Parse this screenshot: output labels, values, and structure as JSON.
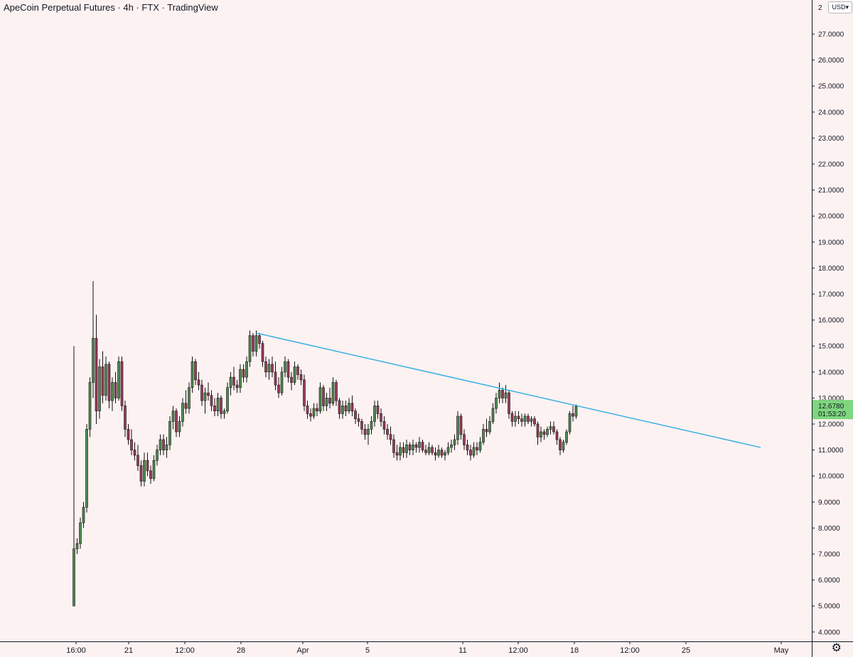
{
  "header": {
    "title": "ApeCoin Perpetual Futures · 4h · FTX · TradingView",
    "currency_label": "USD",
    "currency_chevron": "▾"
  },
  "price_tag": {
    "price": "12.6780",
    "countdown": "01:53:20",
    "color": "#7ed67e"
  },
  "settings_icon": "gear-icon",
  "colors": {
    "background": "#fdf2f2",
    "up_candle": "#4f8a50",
    "down_candle": "#9b3b5a",
    "trendline": "#3ab0e2",
    "axis": "#131722"
  },
  "chart_data": {
    "type": "candlestick",
    "title": "ApeCoin Perpetual Futures · 4h · FTX · TradingView",
    "y_axis": {
      "side": "right",
      "ylim": [
        3.8,
        28.2
      ],
      "ticks": [
        "4.0000",
        "5.0000",
        "6.0000",
        "7.0000",
        "8.0000",
        "9.0000",
        "10.0000",
        "11.0000",
        "12.0000",
        "13.0000",
        "14.0000",
        "15.0000",
        "16.0000",
        "17.0000",
        "18.0000",
        "19.0000",
        "20.0000",
        "21.0000",
        "22.0000",
        "23.0000",
        "24.0000",
        "25.0000",
        "26.0000",
        "27.0000"
      ],
      "top_tick_clipped": "2"
    },
    "x_axis": {
      "ticks": [
        "16:00",
        "21",
        "12:00",
        "28",
        "Apr",
        "5",
        "11",
        "12:00",
        "18",
        "12:00",
        "25",
        "May"
      ]
    },
    "candles": [
      [
        5.0,
        15.0,
        5.0,
        7.2
      ],
      [
        7.2,
        7.6,
        7.0,
        7.4
      ],
      [
        7.4,
        8.4,
        7.2,
        8.2
      ],
      [
        8.2,
        9.0,
        8.0,
        8.8
      ],
      [
        8.8,
        12.0,
        8.6,
        11.8
      ],
      [
        11.8,
        13.8,
        11.5,
        13.6
      ],
      [
        13.6,
        17.5,
        13.0,
        15.3
      ],
      [
        15.3,
        16.2,
        12.0,
        12.5
      ],
      [
        12.5,
        14.5,
        12.2,
        14.2
      ],
      [
        14.2,
        14.8,
        12.8,
        13.1
      ],
      [
        13.1,
        14.6,
        12.9,
        14.3
      ],
      [
        14.3,
        14.4,
        12.6,
        12.9
      ],
      [
        12.9,
        13.8,
        12.5,
        13.6
      ],
      [
        13.6,
        14.0,
        12.8,
        13.0
      ],
      [
        13.0,
        14.6,
        12.9,
        14.4
      ],
      [
        14.4,
        14.6,
        12.5,
        12.7
      ],
      [
        12.7,
        12.9,
        11.5,
        11.8
      ],
      [
        11.8,
        12.0,
        11.2,
        11.4
      ],
      [
        11.4,
        11.8,
        10.8,
        11.0
      ],
      [
        11.0,
        11.3,
        10.6,
        10.8
      ],
      [
        10.8,
        11.2,
        10.2,
        10.4
      ],
      [
        10.4,
        10.6,
        9.6,
        9.8
      ],
      [
        9.8,
        10.9,
        9.6,
        10.6
      ],
      [
        10.6,
        10.9,
        10.0,
        10.2
      ],
      [
        10.2,
        10.4,
        9.7,
        9.9
      ],
      [
        9.9,
        10.8,
        9.8,
        10.6
      ],
      [
        10.6,
        11.2,
        10.4,
        11.0
      ],
      [
        11.0,
        11.6,
        10.8,
        11.4
      ],
      [
        11.4,
        11.6,
        10.8,
        11.0
      ],
      [
        11.0,
        11.5,
        10.7,
        11.2
      ],
      [
        11.2,
        12.3,
        11.0,
        12.1
      ],
      [
        12.1,
        12.7,
        11.8,
        12.5
      ],
      [
        12.5,
        12.6,
        11.5,
        11.7
      ],
      [
        11.7,
        12.3,
        11.5,
        12.1
      ],
      [
        12.1,
        13.0,
        11.9,
        12.8
      ],
      [
        12.8,
        13.3,
        12.4,
        12.6
      ],
      [
        12.6,
        13.6,
        12.4,
        13.4
      ],
      [
        13.4,
        14.6,
        13.2,
        14.4
      ],
      [
        14.4,
        14.5,
        13.5,
        13.7
      ],
      [
        13.7,
        14.0,
        13.3,
        13.5
      ],
      [
        13.5,
        13.7,
        12.7,
        12.9
      ],
      [
        12.9,
        13.4,
        12.4,
        13.2
      ],
      [
        13.2,
        13.6,
        12.9,
        13.1
      ],
      [
        13.1,
        13.3,
        12.5,
        12.7
      ],
      [
        12.7,
        13.0,
        12.3,
        12.5
      ],
      [
        12.5,
        13.2,
        12.3,
        13.0
      ],
      [
        13.0,
        13.1,
        12.2,
        12.4
      ],
      [
        12.4,
        12.6,
        12.2,
        12.5
      ],
      [
        12.5,
        13.6,
        12.4,
        13.4
      ],
      [
        13.4,
        14.0,
        13.1,
        13.8
      ],
      [
        13.8,
        14.2,
        13.3,
        13.5
      ],
      [
        13.5,
        13.7,
        13.2,
        13.4
      ],
      [
        13.4,
        14.3,
        13.2,
        14.1
      ],
      [
        14.1,
        14.3,
        13.6,
        13.8
      ],
      [
        13.8,
        14.6,
        13.6,
        14.4
      ],
      [
        14.4,
        15.6,
        14.2,
        15.4
      ],
      [
        15.4,
        15.5,
        14.6,
        14.8
      ],
      [
        14.8,
        15.6,
        14.6,
        15.4
      ],
      [
        15.4,
        15.5,
        14.9,
        15.1
      ],
      [
        15.1,
        15.2,
        14.2,
        14.4
      ],
      [
        14.4,
        14.6,
        13.8,
        14.0
      ],
      [
        14.0,
        14.5,
        13.7,
        14.3
      ],
      [
        14.3,
        14.6,
        13.8,
        14.0
      ],
      [
        14.0,
        14.4,
        13.3,
        13.5
      ],
      [
        13.5,
        13.8,
        13.0,
        13.2
      ],
      [
        13.2,
        14.2,
        13.1,
        14.0
      ],
      [
        14.0,
        14.6,
        13.8,
        14.4
      ],
      [
        14.4,
        14.5,
        13.6,
        13.8
      ],
      [
        13.8,
        14.0,
        13.3,
        13.6
      ],
      [
        13.6,
        14.4,
        13.5,
        14.2
      ],
      [
        14.2,
        14.3,
        13.7,
        13.9
      ],
      [
        13.9,
        14.1,
        13.5,
        13.7
      ],
      [
        13.7,
        13.9,
        12.5,
        12.7
      ],
      [
        12.7,
        12.9,
        12.2,
        12.4
      ],
      [
        12.4,
        12.6,
        12.1,
        12.3
      ],
      [
        12.3,
        12.8,
        12.2,
        12.6
      ],
      [
        12.6,
        12.8,
        12.3,
        12.5
      ],
      [
        12.5,
        13.6,
        12.4,
        13.4
      ],
      [
        13.4,
        13.5,
        12.5,
        12.7
      ],
      [
        12.7,
        13.2,
        12.5,
        13.0
      ],
      [
        13.0,
        13.4,
        12.6,
        12.8
      ],
      [
        12.8,
        13.8,
        12.7,
        13.6
      ],
      [
        13.6,
        13.7,
        12.7,
        12.9
      ],
      [
        12.9,
        13.0,
        12.2,
        12.4
      ],
      [
        12.4,
        12.9,
        12.2,
        12.7
      ],
      [
        12.7,
        12.9,
        12.3,
        12.5
      ],
      [
        12.5,
        13.0,
        12.4,
        12.8
      ],
      [
        12.8,
        13.1,
        12.3,
        12.5
      ],
      [
        12.5,
        12.6,
        12.0,
        12.2
      ],
      [
        12.2,
        12.4,
        11.9,
        12.1
      ],
      [
        12.1,
        12.2,
        11.6,
        11.8
      ],
      [
        11.8,
        12.0,
        11.4,
        11.6
      ],
      [
        11.6,
        12.0,
        11.2,
        11.8
      ],
      [
        11.8,
        12.3,
        11.6,
        12.1
      ],
      [
        12.1,
        12.9,
        11.9,
        12.7
      ],
      [
        12.7,
        12.9,
        12.2,
        12.4
      ],
      [
        12.4,
        12.6,
        11.9,
        12.1
      ],
      [
        12.1,
        12.3,
        11.6,
        11.8
      ],
      [
        11.8,
        12.0,
        11.4,
        11.6
      ],
      [
        11.6,
        11.9,
        11.2,
        11.4
      ],
      [
        11.4,
        11.6,
        10.7,
        10.9
      ],
      [
        10.9,
        11.2,
        10.6,
        10.8
      ],
      [
        10.8,
        11.3,
        10.6,
        11.1
      ],
      [
        11.1,
        11.3,
        10.7,
        10.9
      ],
      [
        10.9,
        11.4,
        10.7,
        11.2
      ],
      [
        11.2,
        11.3,
        10.8,
        11.0
      ],
      [
        11.0,
        11.4,
        10.8,
        11.2
      ],
      [
        11.2,
        11.3,
        10.9,
        11.1
      ],
      [
        11.1,
        11.5,
        10.9,
        11.3
      ],
      [
        11.3,
        11.4,
        10.9,
        11.0
      ],
      [
        11.0,
        11.2,
        10.8,
        10.9
      ],
      [
        10.9,
        11.3,
        10.8,
        11.1
      ],
      [
        11.1,
        11.2,
        10.8,
        10.9
      ],
      [
        10.9,
        11.1,
        10.6,
        10.8
      ],
      [
        10.8,
        11.2,
        10.7,
        11.0
      ],
      [
        11.0,
        11.1,
        10.7,
        10.8
      ],
      [
        10.8,
        11.0,
        10.6,
        10.9
      ],
      [
        10.9,
        11.3,
        10.8,
        11.1
      ],
      [
        11.1,
        11.4,
        10.9,
        11.2
      ],
      [
        11.2,
        11.6,
        11.0,
        11.4
      ],
      [
        11.4,
        12.5,
        11.2,
        12.3
      ],
      [
        12.3,
        12.4,
        11.4,
        11.6
      ],
      [
        11.6,
        11.8,
        11.0,
        11.2
      ],
      [
        11.2,
        11.4,
        10.8,
        11.0
      ],
      [
        11.0,
        11.2,
        10.6,
        10.8
      ],
      [
        10.8,
        11.3,
        10.7,
        11.1
      ],
      [
        11.1,
        11.3,
        10.8,
        11.0
      ],
      [
        11.0,
        11.5,
        10.9,
        11.3
      ],
      [
        11.3,
        12.0,
        11.2,
        11.8
      ],
      [
        11.8,
        12.2,
        11.5,
        11.7
      ],
      [
        11.7,
        12.3,
        11.6,
        12.1
      ],
      [
        12.1,
        12.8,
        12.0,
        12.6
      ],
      [
        12.6,
        13.2,
        12.4,
        13.0
      ],
      [
        13.0,
        13.6,
        12.8,
        13.3
      ],
      [
        13.3,
        13.4,
        12.8,
        13.0
      ],
      [
        13.0,
        13.5,
        12.8,
        13.2
      ],
      [
        13.2,
        13.3,
        12.2,
        12.4
      ],
      [
        12.4,
        12.5,
        11.9,
        12.1
      ],
      [
        12.1,
        12.5,
        11.9,
        12.3
      ],
      [
        12.3,
        12.5,
        12.0,
        12.2
      ],
      [
        12.2,
        12.4,
        11.9,
        12.1
      ],
      [
        12.1,
        12.4,
        11.9,
        12.3
      ],
      [
        12.3,
        12.4,
        12.0,
        12.1
      ],
      [
        12.1,
        12.3,
        11.9,
        12.2
      ],
      [
        12.2,
        12.3,
        11.9,
        12.0
      ],
      [
        12.0,
        12.1,
        11.2,
        11.5
      ],
      [
        11.5,
        11.9,
        11.3,
        11.7
      ],
      [
        11.7,
        11.8,
        11.4,
        11.6
      ],
      [
        11.6,
        11.9,
        11.5,
        11.8
      ],
      [
        11.8,
        12.1,
        11.6,
        11.9
      ],
      [
        11.9,
        12.1,
        11.6,
        11.7
      ],
      [
        11.7,
        11.8,
        11.2,
        11.4
      ],
      [
        11.4,
        11.5,
        10.8,
        11.0
      ],
      [
        11.0,
        11.4,
        10.9,
        11.3
      ],
      [
        11.3,
        11.8,
        11.2,
        11.7
      ],
      [
        11.7,
        12.5,
        11.6,
        12.4
      ],
      [
        12.4,
        12.7,
        12.1,
        12.3
      ],
      [
        12.3,
        12.75,
        12.2,
        12.678
      ]
    ],
    "trendline": {
      "from": {
        "candle": 57,
        "price": 15.5
      },
      "to": {
        "price": 11.1
      }
    }
  }
}
